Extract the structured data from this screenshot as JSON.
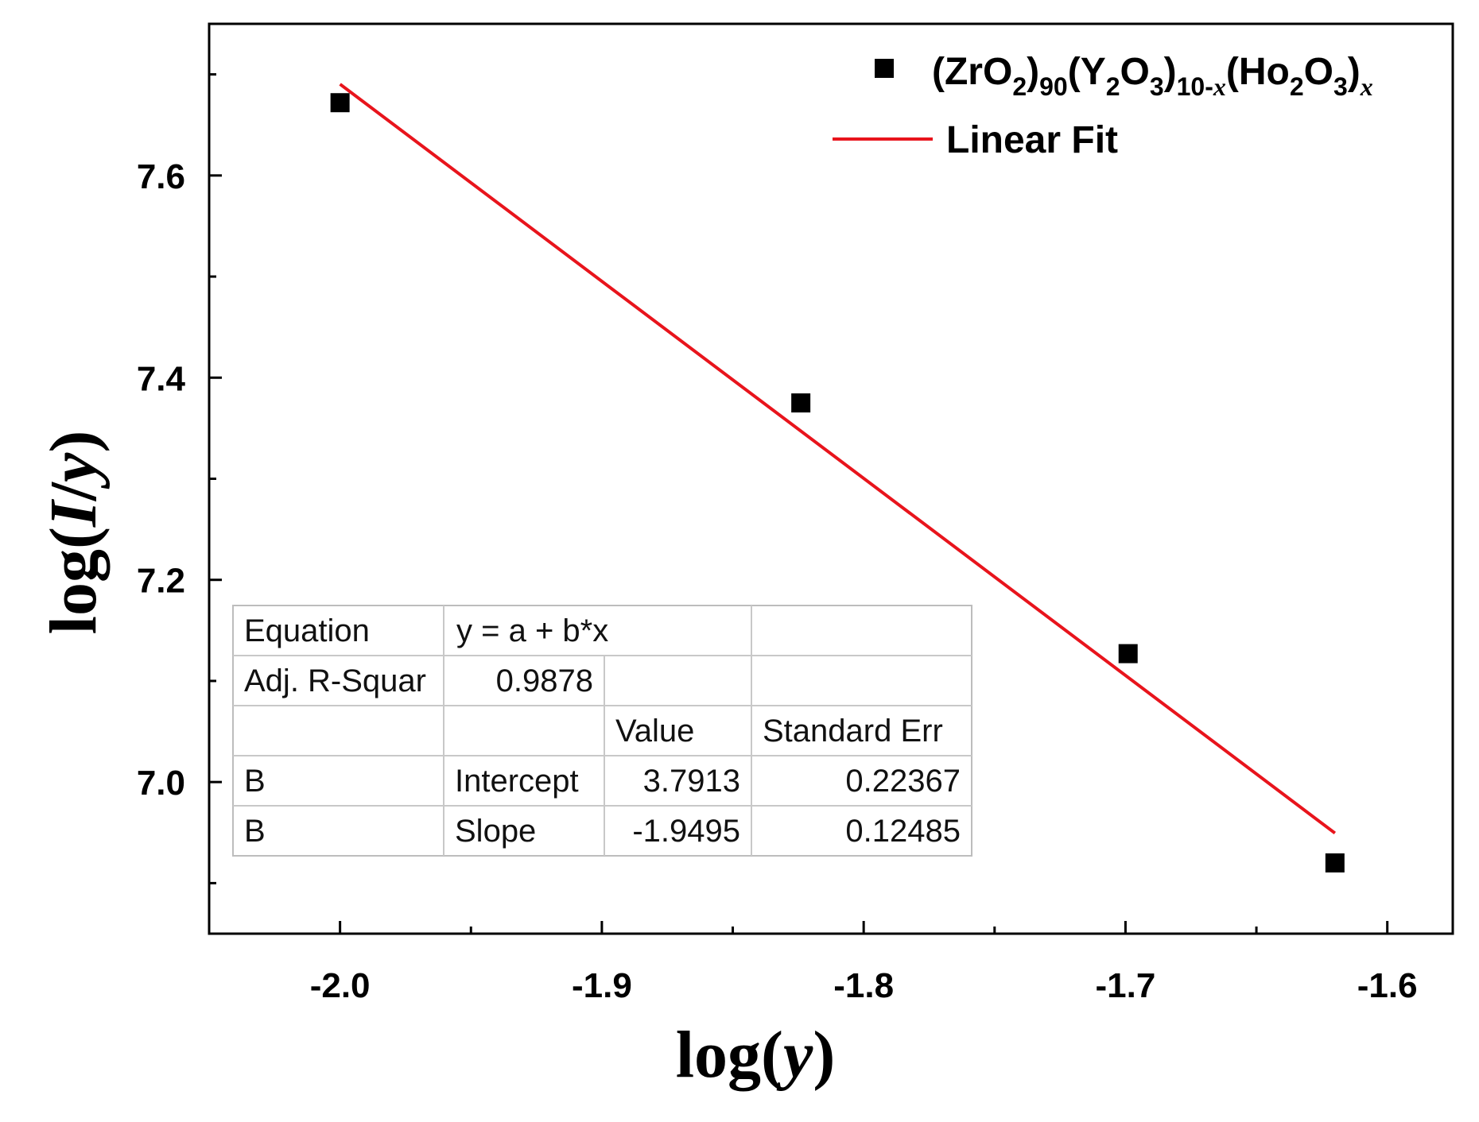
{
  "chart_data": {
    "type": "scatter",
    "title": "",
    "xlabel": "log(y)",
    "ylabel": "log(I/y)",
    "xlim": [
      -2.05,
      -1.575
    ],
    "ylim": [
      6.85,
      7.75
    ],
    "x_ticks": [
      -2.0,
      -1.9,
      -1.8,
      -1.7,
      -1.6
    ],
    "x_tick_labels": [
      "-2.0",
      "-1.9",
      "-1.8",
      "-1.7",
      "-1.6"
    ],
    "y_ticks": [
      7.0,
      7.2,
      7.4,
      7.6
    ],
    "y_tick_labels": [
      "7.0",
      "7.2",
      "7.4",
      "7.6"
    ],
    "grid": false,
    "legend_position": "top-right",
    "series": [
      {
        "name": "(ZrO2)90(Y2O3)10-x(Ho2O3)x",
        "kind": "scatter",
        "marker": "square",
        "color": "#000000",
        "x": [
          -2.0,
          -1.824,
          -1.699,
          -1.62
        ],
        "y": [
          7.672,
          7.375,
          7.127,
          6.92
        ]
      },
      {
        "name": "Linear Fit",
        "kind": "line",
        "color": "#e8141c",
        "intercept": 3.7913,
        "slope": -1.9495,
        "x_range": [
          -2.0,
          -1.62
        ]
      }
    ],
    "legend": {
      "series_label": {
        "parts": [
          {
            "t": "(ZrO"
          },
          {
            "t": "2",
            "sub": true
          },
          {
            "t": ")"
          },
          {
            "t": "90",
            "sub": true
          },
          {
            "t": "(Y"
          },
          {
            "t": "2",
            "sub": true
          },
          {
            "t": "O"
          },
          {
            "t": "3",
            "sub": true
          },
          {
            "t": ")"
          },
          {
            "t": "10-",
            "sub": true
          },
          {
            "t": "x",
            "sub": true,
            "italic": true
          },
          {
            "t": "(Ho"
          },
          {
            "t": "2",
            "sub": true
          },
          {
            "t": "O"
          },
          {
            "t": "3",
            "sub": true
          },
          {
            "t": ")"
          },
          {
            "t": "x",
            "sub": true,
            "italic": true
          }
        ]
      },
      "fit_label": "Linear Fit"
    },
    "fit_table": [
      [
        "Equation",
        "y = a + b*x",
        "",
        ""
      ],
      [
        "Adj. R-Squar",
        "0.9878",
        "",
        ""
      ],
      [
        "",
        "",
        "Value",
        "Standard Err"
      ],
      [
        "B",
        "Intercept",
        "3.7913",
        "0.22367"
      ],
      [
        "B",
        "Slope",
        "-1.9495",
        "0.12485"
      ]
    ]
  }
}
